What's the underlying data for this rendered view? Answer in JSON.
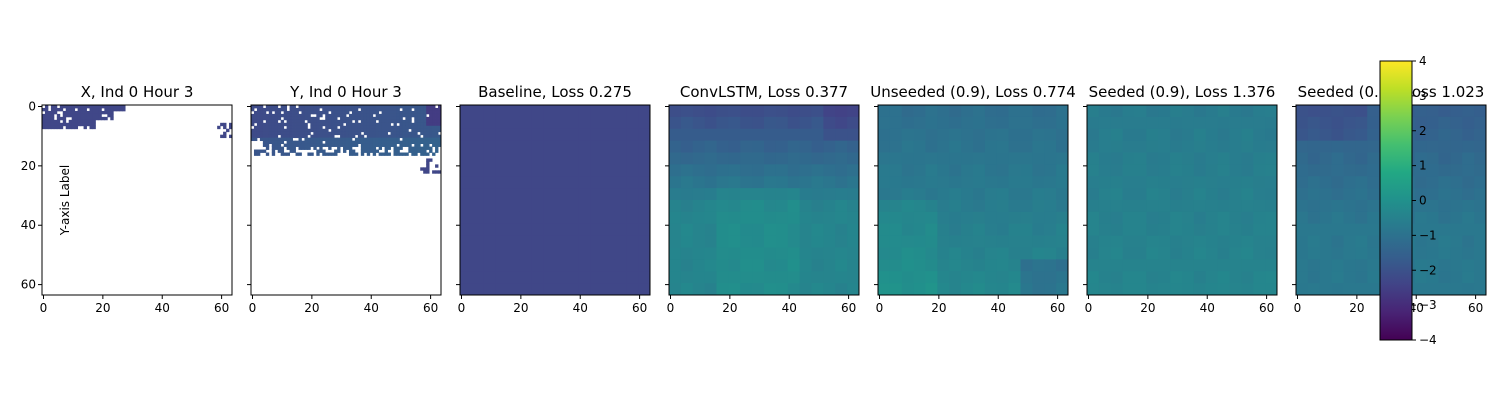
{
  "chart_data": [
    {
      "type": "heatmap",
      "title": "X, Ind 0 Hour 3",
      "ylabel": "Y-axis Label",
      "xlim": [
        0,
        63
      ],
      "ylim": [
        63,
        0
      ],
      "x_ticks": [
        0,
        20,
        40,
        60
      ],
      "y_ticks": [
        0,
        20,
        40,
        60
      ],
      "show_y_tick_labels": true,
      "pattern": "mask_top",
      "description_values": "sparse dark cells (~-2.3) in rows 0-8, rest missing"
    },
    {
      "type": "heatmap",
      "title": "Y, Ind 0 Hour 3",
      "xlim": [
        0,
        63
      ],
      "ylim": [
        63,
        0
      ],
      "x_ticks": [
        0,
        20,
        40,
        60
      ],
      "y_ticks": [
        0,
        20,
        40,
        60
      ],
      "show_y_tick_labels": false,
      "pattern": "mask_y"
    },
    {
      "type": "heatmap",
      "title": "Baseline, Loss 0.275",
      "xlim": [
        0,
        63
      ],
      "ylim": [
        63,
        0
      ],
      "x_ticks": [
        0,
        20,
        40,
        60
      ],
      "y_ticks": [
        0,
        20,
        40,
        60
      ],
      "show_y_tick_labels": false,
      "pattern": "uniform",
      "value": -2.3
    },
    {
      "type": "heatmap",
      "title": "ConvLSTM, Loss 0.377",
      "xlim": [
        0,
        63
      ],
      "ylim": [
        63,
        0
      ],
      "x_ticks": [
        0,
        20,
        40,
        60
      ],
      "y_ticks": [
        0,
        20,
        40,
        60
      ],
      "show_y_tick_labels": false,
      "pattern": "gradient_convlstm"
    },
    {
      "type": "heatmap",
      "title": "Unseeded (0.9), Loss 0.774",
      "xlim": [
        0,
        63
      ],
      "ylim": [
        63,
        0
      ],
      "x_ticks": [
        0,
        20,
        40,
        60
      ],
      "y_ticks": [
        0,
        20,
        40,
        60
      ],
      "show_y_tick_labels": false,
      "pattern": "gradient_unseeded"
    },
    {
      "type": "heatmap",
      "title": "Seeded (0.9), Loss 1.376",
      "xlim": [
        0,
        63
      ],
      "ylim": [
        63,
        0
      ],
      "x_ticks": [
        0,
        20,
        40,
        60
      ],
      "y_ticks": [
        0,
        20,
        40,
        60
      ],
      "show_y_tick_labels": false,
      "pattern": "gradient_seeded"
    },
    {
      "type": "heatmap",
      "title": "Seeded (0.9), Loss 1.023",
      "xlim": [
        0,
        63
      ],
      "ylim": [
        63,
        0
      ],
      "x_ticks": [
        0,
        20,
        40,
        60
      ],
      "y_ticks": [
        0,
        20,
        40,
        60
      ],
      "show_y_tick_labels": false,
      "pattern": "gradient_seeded2"
    }
  ],
  "colorbar": {
    "colormap": "viridis",
    "range": [
      -4,
      4
    ],
    "ticks": [
      4,
      3,
      2,
      1,
      0,
      -1,
      -2,
      -3,
      -4
    ]
  },
  "tick_labels": {
    "minus": "−"
  }
}
